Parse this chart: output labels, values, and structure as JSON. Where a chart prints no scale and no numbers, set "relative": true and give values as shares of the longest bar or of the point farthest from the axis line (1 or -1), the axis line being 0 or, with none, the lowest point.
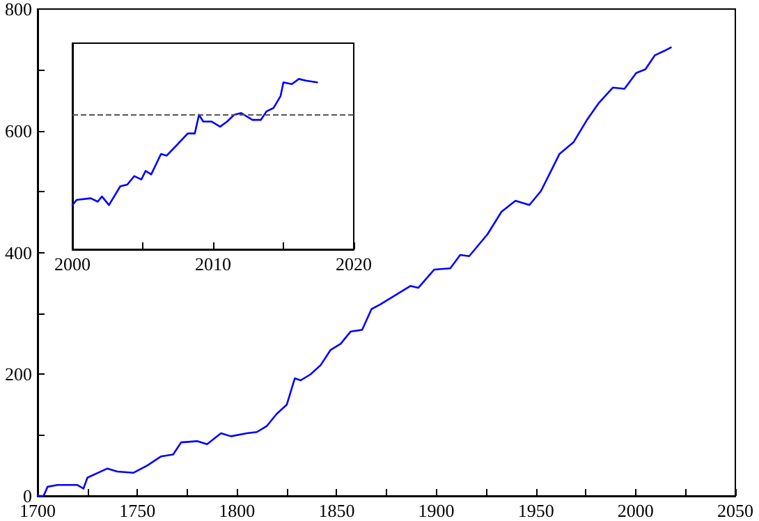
{
  "chart_data": [
    {
      "type": "line",
      "color": "#0000ff",
      "marker": "none",
      "line_style": "solid",
      "grid": false,
      "x": [
        1700,
        1703,
        1705,
        1710,
        1720,
        1723,
        1725,
        1735,
        1740,
        1748,
        1755,
        1762,
        1768,
        1772,
        1780,
        1785,
        1792,
        1797,
        1805,
        1810,
        1815,
        1820,
        1825,
        1829,
        1832,
        1837,
        1842,
        1847,
        1852,
        1857,
        1862.8,
        1867.5,
        1872,
        1887,
        1891,
        1899,
        1907,
        1912,
        1916.5,
        1925.7,
        1932.7,
        1939.7,
        1946.7,
        1952.5,
        1958.3,
        1961.8,
        1968.8,
        1975.8,
        1981.6,
        1988.6,
        1994.4,
        2000.3,
        2004.9,
        2009.6,
        2014.2,
        2017.7
      ],
      "values": [
        0,
        0,
        15,
        18,
        18,
        12,
        30,
        45,
        40,
        38,
        50,
        65,
        68,
        88,
        90,
        85,
        103,
        98,
        103,
        105,
        115,
        135,
        150,
        193,
        190,
        200,
        215,
        240,
        250,
        270,
        273,
        307,
        315,
        345,
        342,
        372,
        374,
        396,
        394,
        430,
        467,
        485,
        478,
        501,
        539,
        562,
        581,
        619,
        646,
        671,
        669,
        695,
        701,
        724,
        731,
        737
      ],
      "xlim": [
        1700,
        2050
      ],
      "xticks": [
        1700,
        {
          "value": 1725,
          "label": null
        },
        1750,
        {
          "value": 1775,
          "label": null
        },
        1800,
        {
          "value": 1825,
          "label": null
        },
        1850,
        {
          "value": 1875,
          "label": null
        },
        1900,
        {
          "value": 1925,
          "label": null
        },
        1950,
        {
          "value": 1975,
          "label": null
        },
        2000,
        {
          "value": 2025,
          "label": null
        },
        2050
      ],
      "ylim": [
        0,
        800
      ],
      "yticks": [
        0,
        {
          "value": 100,
          "label": null
        },
        200,
        {
          "value": 300,
          "label": null
        },
        400,
        {
          "value": 500,
          "label": null
        },
        600,
        {
          "value": 700,
          "label": null
        },
        800
      ]
    },
    {
      "type": "line",
      "color": "#0000ff",
      "marker": "none",
      "line_style": "solid",
      "grid": false,
      "relative": true,
      "tick_labels": "x",
      "x": [
        2000,
        2000.3,
        2001.3,
        2001.8,
        2002.1,
        2002.6,
        2003.4,
        2003.9,
        2004.4,
        2004.9,
        2005.2,
        2005.6,
        2006.3,
        2006.7,
        2007.4,
        2008.2,
        2008.7,
        2009.0,
        2009.3,
        2009.9,
        2010.5,
        2011.0,
        2011.5,
        2012.0,
        2012.8,
        2013.4,
        2013.8,
        2014.3,
        2014.8,
        2015.0,
        2015.6,
        2016.1,
        2016.6,
        2017.4
      ],
      "values": [
        0.26,
        0.29,
        0.3,
        0.28,
        0.31,
        0.26,
        0.37,
        0.38,
        0.43,
        0.41,
        0.46,
        0.44,
        0.56,
        0.55,
        0.61,
        0.68,
        0.68,
        0.79,
        0.75,
        0.75,
        0.72,
        0.75,
        0.79,
        0.8,
        0.76,
        0.76,
        0.81,
        0.83,
        0.9,
        0.98,
        0.97,
        1.0,
        0.99,
        0.98
      ],
      "xlim": [
        2000,
        2020
      ],
      "xticks": [
        2000,
        {
          "value": 2005,
          "label": null
        },
        2010,
        {
          "value": 2015,
          "label": null
        },
        2020
      ],
      "ref_lines": [
        {
          "axis": "y",
          "value": 0.79,
          "color": "#555555",
          "line_style": "dashed"
        }
      ]
    }
  ]
}
